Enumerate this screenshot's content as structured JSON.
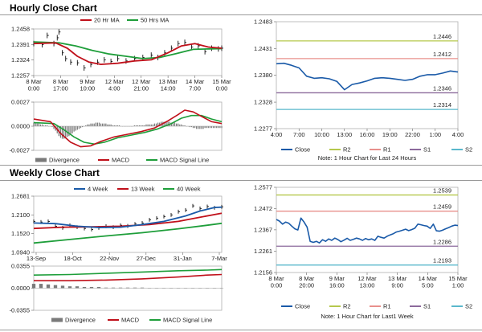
{
  "colors": {
    "ma_short": "#c0101a",
    "ma_long": "#1e9e3a",
    "price": "#1a5aa8",
    "r2": "#b5c84c",
    "r1": "#e8908c",
    "s1": "#8c6a9c",
    "s2": "#5ab8cc",
    "divergence": "#7a7a7a",
    "macd": "#c0101a",
    "signal": "#1e9e3a"
  },
  "sections": {
    "hourly_title": "Hourly Close Chart",
    "weekly_title": "Weekly Close Chart"
  },
  "chart_data": [
    {
      "id": "hourly_price",
      "type": "line",
      "legend": [
        "20 Hr MA",
        "50 Hrs MA"
      ],
      "x_ticks": [
        "8 Mar\n0:00",
        "8 Mar\n17:00",
        "9 Mar\n10:00",
        "12 Mar\n4:00",
        "12 Mar\n21:00",
        "13 Mar\n14:00",
        "14 Mar\n7:00",
        "15 Mar\n0:00"
      ],
      "y_ticks": [
        1.2458,
        1.2391,
        1.2324,
        1.2257
      ],
      "ylim": [
        1.2257,
        1.2458
      ],
      "x_count": 113,
      "series": [
        {
          "name": "20 Hr MA",
          "color_key": "ma_short",
          "points": [
            [
              0,
              1.2395
            ],
            [
              13,
              1.2398
            ],
            [
              20,
              1.2375
            ],
            [
              26,
              1.234
            ],
            [
              33,
              1.2315
            ],
            [
              40,
              1.2305
            ],
            [
              50,
              1.231
            ],
            [
              60,
              1.232
            ],
            [
              70,
              1.2325
            ],
            [
              80,
              1.2355
            ],
            [
              88,
              1.2385
            ],
            [
              96,
              1.2395
            ],
            [
              104,
              1.238
            ],
            [
              112,
              1.2375
            ]
          ]
        },
        {
          "name": "50 Hrs MA",
          "color_key": "ma_long",
          "points": [
            [
              0,
              1.2402
            ],
            [
              15,
              1.2398
            ],
            [
              25,
              1.2385
            ],
            [
              35,
              1.2365
            ],
            [
              45,
              1.235
            ],
            [
              55,
              1.234
            ],
            [
              65,
              1.233
            ],
            [
              75,
              1.2335
            ],
            [
              85,
              1.2352
            ],
            [
              95,
              1.237
            ],
            [
              105,
              1.2372
            ],
            [
              112,
              1.2373
            ]
          ]
        },
        {
          "name": "Close",
          "style": "ohlc",
          "points": [
            [
              0,
              1.2395
            ],
            [
              5,
              1.239
            ],
            [
              8,
              1.243
            ],
            [
              12,
              1.2395
            ],
            [
              14,
              1.242
            ],
            [
              15,
              1.2445
            ],
            [
              17,
              1.2355
            ],
            [
              19,
              1.233
            ],
            [
              22,
              1.2315
            ],
            [
              26,
              1.2312
            ],
            [
              30,
              1.229
            ],
            [
              34,
              1.2305
            ],
            [
              38,
              1.2315
            ],
            [
              42,
              1.2325
            ],
            [
              46,
              1.2318
            ],
            [
              50,
              1.233
            ],
            [
              55,
              1.232
            ],
            [
              60,
              1.233
            ],
            [
              65,
              1.2335
            ],
            [
              70,
              1.2345
            ],
            [
              74,
              1.2335
            ],
            [
              78,
              1.2355
            ],
            [
              82,
              1.2375
            ],
            [
              86,
              1.2395
            ],
            [
              90,
              1.24
            ],
            [
              94,
              1.238
            ],
            [
              98,
              1.2385
            ],
            [
              102,
              1.236
            ],
            [
              106,
              1.2375
            ],
            [
              110,
              1.2372
            ],
            [
              112,
              1.2375
            ]
          ]
        }
      ]
    },
    {
      "id": "hourly_macd",
      "type": "line",
      "legend": [
        "Divergence",
        "MACD",
        "MACD Signal Line"
      ],
      "y_ticks": [
        0.0027,
        0.0,
        -0.0027
      ],
      "ylim": [
        -0.0027,
        0.0027
      ],
      "x_count": 113,
      "divergence": [
        0.0004,
        0.0004,
        0.0003,
        0.0003,
        0.0002,
        0.0002,
        0.0001,
        0.0001,
        0.0001,
        0.0,
        0.0,
        -0.0001,
        -0.0003,
        -0.0005,
        -0.0008,
        -0.0011,
        -0.0013,
        -0.0014,
        -0.0014,
        -0.0013,
        -0.0012,
        -0.0011,
        -0.0009,
        -0.0008,
        -0.0006,
        -0.0005,
        -0.0004,
        -0.0003,
        -0.0002,
        -0.0001,
        0.0,
        0.0001,
        0.0002,
        0.0002,
        0.0003,
        0.0003,
        0.0003,
        0.0004,
        0.0004,
        0.0004,
        0.0003,
        0.0003,
        0.0003,
        0.0003,
        0.0002,
        0.0002,
        0.0002,
        0.0001,
        0.0001,
        0.0001,
        0.0001,
        0.0001,
        0.0,
        0.0,
        0.0,
        0.0,
        0.0,
        0.0,
        0.0,
        0.0,
        0.0001,
        0.0001,
        0.0001,
        0.0001,
        0.0001,
        0.0001,
        0.0001,
        0.0002,
        0.0002,
        0.0002,
        0.0002,
        0.0002,
        0.0003,
        0.0003,
        0.0004,
        0.0004,
        0.0005,
        0.0005,
        0.0005,
        0.0005,
        0.0005,
        0.0005,
        0.0004,
        0.0004,
        0.0004,
        0.0003,
        0.0003,
        0.0002,
        0.0002,
        0.0001,
        0.0001,
        0.0,
        0.0,
        -0.0001,
        -0.0001,
        -0.0002,
        -0.0002,
        -0.0003,
        -0.0003,
        -0.0003,
        -0.0003,
        -0.0003,
        -0.0002,
        -0.0002,
        -0.0002,
        -0.0002,
        -0.0002,
        -0.0002,
        -0.0002,
        -0.0002,
        -0.0002,
        -0.0002,
        -0.0002
      ],
      "series": [
        {
          "name": "MACD",
          "color_key": "macd",
          "points": [
            [
              0,
              0.0008
            ],
            [
              10,
              0.0005
            ],
            [
              16,
              -0.0008
            ],
            [
              22,
              -0.0018
            ],
            [
              28,
              -0.0023
            ],
            [
              34,
              -0.0022
            ],
            [
              40,
              -0.0017
            ],
            [
              48,
              -0.0012
            ],
            [
              56,
              -0.0009
            ],
            [
              64,
              -0.0006
            ],
            [
              72,
              -0.0002
            ],
            [
              80,
              0.0006
            ],
            [
              86,
              0.0013
            ],
            [
              90,
              0.0018
            ],
            [
              95,
              0.0016
            ],
            [
              100,
              0.0011
            ],
            [
              106,
              0.0005
            ],
            [
              112,
              0.0003
            ]
          ]
        },
        {
          "name": "MACD Signal Line",
          "color_key": "signal",
          "points": [
            [
              0,
              0.0004
            ],
            [
              12,
              0.0003
            ],
            [
              18,
              -0.0004
            ],
            [
              24,
              -0.0012
            ],
            [
              30,
              -0.0018
            ],
            [
              36,
              -0.002
            ],
            [
              42,
              -0.0018
            ],
            [
              50,
              -0.0013
            ],
            [
              58,
              -0.001
            ],
            [
              66,
              -0.0007
            ],
            [
              74,
              -0.0003
            ],
            [
              82,
              0.0003
            ],
            [
              88,
              0.0009
            ],
            [
              94,
              0.0012
            ],
            [
              100,
              0.0012
            ],
            [
              106,
              0.0008
            ],
            [
              112,
              0.0005
            ]
          ]
        }
      ]
    },
    {
      "id": "hourly_24h",
      "type": "line",
      "legend": [
        "Close",
        "R2",
        "R1",
        "S1",
        "S2"
      ],
      "note": "Note: 1 Hour Chart for Last 24 Hours",
      "x_ticks": [
        "4:00",
        "7:00",
        "10:00",
        "13:00",
        "16:00",
        "19:00",
        "22:00",
        "1:00",
        "4:00"
      ],
      "y_ticks": [
        1.2483,
        1.2431,
        1.238,
        1.2328,
        1.2277
      ],
      "ylim": [
        1.2277,
        1.2483
      ],
      "levels": [
        {
          "name": "R2",
          "value": 1.2446,
          "label": "1.2446",
          "color_key": "r2"
        },
        {
          "name": "R1",
          "value": 1.2412,
          "label": "1.2412",
          "color_key": "r1"
        },
        {
          "name": "S1",
          "value": 1.2346,
          "label": "1.2346",
          "color_key": "s1"
        },
        {
          "name": "S2",
          "value": 1.2314,
          "label": "1.2314",
          "color_key": "s2"
        }
      ],
      "close": [
        1.2402,
        1.2403,
        1.2399,
        1.2394,
        1.2378,
        1.2374,
        1.2375,
        1.2373,
        1.2368,
        1.2352,
        1.2362,
        1.2365,
        1.2369,
        1.2374,
        1.2375,
        1.2374,
        1.2372,
        1.237,
        1.2372,
        1.2378,
        1.2381,
        1.2381,
        1.2384,
        1.2388,
        1.2386
      ]
    },
    {
      "id": "weekly_price",
      "type": "line",
      "legend": [
        "4 Week",
        "13 Week",
        "40 Week"
      ],
      "x_ticks": [
        "13-Sep",
        "18-Oct",
        "22-Nov",
        "27-Dec",
        "31-Jan",
        "7-Mar"
      ],
      "y_ticks": [
        1.2681,
        1.21,
        1.152,
        1.094
      ],
      "ylim": [
        1.094,
        1.2681
      ],
      "x_count": 27,
      "series": [
        {
          "name": "4 Week",
          "color_key": "price",
          "points": [
            [
              0,
              1.185
            ],
            [
              3,
              1.183
            ],
            [
              6,
              1.175
            ],
            [
              9,
              1.171
            ],
            [
              12,
              1.172
            ],
            [
              15,
              1.18
            ],
            [
              18,
              1.19
            ],
            [
              21,
              1.207
            ],
            [
              23,
              1.222
            ],
            [
              25,
              1.233
            ],
            [
              26,
              1.234
            ]
          ]
        },
        {
          "name": "13 Week",
          "color_key": "ma_short",
          "points": [
            [
              0,
              1.168
            ],
            [
              4,
              1.172
            ],
            [
              8,
              1.173
            ],
            [
              12,
              1.175
            ],
            [
              16,
              1.18
            ],
            [
              20,
              1.19
            ],
            [
              23,
              1.203
            ],
            [
              26,
              1.215
            ]
          ]
        },
        {
          "name": "40 Week",
          "color_key": "ma_long",
          "points": [
            [
              0,
              1.123
            ],
            [
              5,
              1.134
            ],
            [
              10,
              1.145
            ],
            [
              15,
              1.155
            ],
            [
              20,
              1.167
            ],
            [
              24,
              1.178
            ],
            [
              26,
              1.184
            ]
          ]
        },
        {
          "name": "Close",
          "style": "ohlc",
          "points": [
            [
              0,
              1.19
            ],
            [
              1,
              1.188
            ],
            [
              2,
              1.19
            ],
            [
              3,
              1.175
            ],
            [
              4,
              1.17
            ],
            [
              5,
              1.178
            ],
            [
              6,
              1.172
            ],
            [
              7,
              1.168
            ],
            [
              8,
              1.165
            ],
            [
              9,
              1.17
            ],
            [
              10,
              1.175
            ],
            [
              11,
              1.172
            ],
            [
              12,
              1.178
            ],
            [
              13,
              1.176
            ],
            [
              14,
              1.182
            ],
            [
              15,
              1.185
            ],
            [
              16,
              1.195
            ],
            [
              17,
              1.2
            ],
            [
              18,
              1.205
            ],
            [
              19,
              1.21
            ],
            [
              20,
              1.22
            ],
            [
              21,
              1.225
            ],
            [
              22,
              1.238
            ],
            [
              23,
              1.23
            ],
            [
              24,
              1.236
            ],
            [
              25,
              1.232
            ],
            [
              26,
              1.235
            ]
          ]
        }
      ]
    },
    {
      "id": "weekly_macd",
      "type": "line",
      "legend": [
        "Divergence",
        "MACD",
        "MACD Signal Line"
      ],
      "y_ticks": [
        0.0355,
        0.0,
        -0.0355
      ],
      "ylim": [
        -0.0355,
        0.0355
      ],
      "x_count": 27,
      "divergence": [
        0.007,
        0.007,
        0.006,
        0.005,
        0.004,
        0.003,
        0.003,
        0.002,
        0.002,
        0.002,
        0.001,
        0.001,
        0.001,
        0.001,
        0.001,
        0.001,
        0.0005,
        0.0005,
        0.0005,
        0.0005,
        0.0003,
        0.0003,
        0.0003,
        0.0003,
        0.0003,
        0.0003,
        0.0003
      ],
      "series": [
        {
          "name": "MACD",
          "color_key": "macd",
          "points": [
            [
              0,
              0.012
            ],
            [
              5,
              0.012
            ],
            [
              10,
              0.013
            ],
            [
              15,
              0.015
            ],
            [
              20,
              0.018
            ],
            [
              24,
              0.021
            ],
            [
              26,
              0.022
            ]
          ]
        },
        {
          "name": "MACD Signal Line",
          "color_key": "signal",
          "points": [
            [
              0,
              0.021
            ],
            [
              5,
              0.022
            ],
            [
              10,
              0.024
            ],
            [
              15,
              0.026
            ],
            [
              20,
              0.028
            ],
            [
              24,
              0.029
            ],
            [
              26,
              0.03
            ]
          ]
        }
      ]
    },
    {
      "id": "weekly_1w",
      "type": "line",
      "legend": [
        "Close",
        "R2",
        "R1",
        "S1",
        "S2"
      ],
      "note": "Note: 1 Hour Chart for Last1 Week",
      "x_ticks": [
        "8 Mar\n0:00",
        "8 Mar\n20:00",
        "9 Mar\n16:00",
        "12 Mar\n13:00",
        "13 Mar\n9:00",
        "14 Mar\n5:00",
        "15 Mar\n1:00"
      ],
      "y_ticks": [
        1.2577,
        1.2472,
        1.2367,
        1.2261,
        1.2156
      ],
      "ylim": [
        1.2156,
        1.2577
      ],
      "levels": [
        {
          "name": "R2",
          "value": 1.2539,
          "label": "1.2539",
          "color_key": "r2"
        },
        {
          "name": "R1",
          "value": 1.2459,
          "label": "1.2459",
          "color_key": "r1"
        },
        {
          "name": "S1",
          "value": 1.2286,
          "label": "1.2286",
          "color_key": "s1"
        },
        {
          "name": "S2",
          "value": 1.2193,
          "label": "1.2193",
          "color_key": "s2"
        }
      ],
      "close": [
        1.2418,
        1.241,
        1.2395,
        1.2405,
        1.24,
        1.2385,
        1.2372,
        1.2366,
        1.2425,
        1.2405,
        1.238,
        1.231,
        1.2305,
        1.231,
        1.2302,
        1.2318,
        1.231,
        1.2322,
        1.2315,
        1.2326,
        1.2319,
        1.2308,
        1.2316,
        1.2325,
        1.2315,
        1.232,
        1.2326,
        1.2322,
        1.2315,
        1.2324,
        1.2318,
        1.2322,
        1.2315,
        1.2335,
        1.233,
        1.2326,
        1.2335,
        1.2342,
        1.2348,
        1.2356,
        1.236,
        1.2365,
        1.237,
        1.2363,
        1.2368,
        1.2375,
        1.2395,
        1.2392,
        1.2388,
        1.2385,
        1.2374,
        1.2395,
        1.2362,
        1.236,
        1.2365,
        1.2372,
        1.2378,
        1.2385,
        1.239,
        1.2388
      ]
    }
  ]
}
